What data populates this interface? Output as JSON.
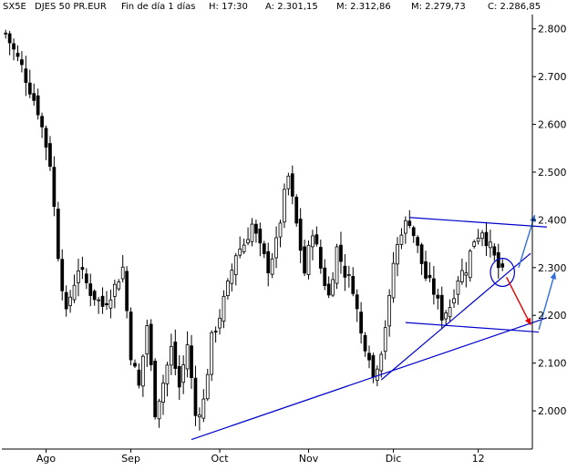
{
  "header": {
    "symbol": "SX5E",
    "name": "DJES 50 PR.EUR",
    "period": "Fin de día 1 días",
    "time": "H: 17:30",
    "open": "A: 2.301,15",
    "high": "M: 2.312,86",
    "low": "M: 2.279,73",
    "close": "C: 2.286,85"
  },
  "colors": {
    "background": "#ffffff",
    "candles": "#000000",
    "trendlines": "#0000cc",
    "arrow_up": "#2f6fdc",
    "arrow_down": "#e00000"
  },
  "chart_data": {
    "type": "candlestick",
    "ylim": [
      1920,
      2830
    ],
    "y_ticks": [
      2000,
      2100,
      2200,
      2300,
      2400,
      2500,
      2600,
      2700,
      2800
    ],
    "y_tick_labels": [
      "2.000",
      "2.100",
      "2.200",
      "2.300",
      "2.400",
      "2.500",
      "2.600",
      "2.700",
      "2.800"
    ],
    "y_axis_position": "right",
    "grid": false,
    "month_labels": [
      "Ago",
      "Sep",
      "Oct",
      "Nov",
      "Dic",
      "12"
    ],
    "month_starts": [
      10,
      31,
      53,
      75,
      96,
      117
    ],
    "n_sessions": 130,
    "close_path": [
      [
        0,
        2790
      ],
      [
        4,
        2720
      ],
      [
        8,
        2630
      ],
      [
        11,
        2520
      ],
      [
        13,
        2330
      ],
      [
        15,
        2200
      ],
      [
        16,
        2240
      ],
      [
        18,
        2300
      ],
      [
        21,
        2250
      ],
      [
        24,
        2220
      ],
      [
        27,
        2260
      ],
      [
        29,
        2300
      ],
      [
        31,
        2120
      ],
      [
        33,
        2050
      ],
      [
        35,
        2180
      ],
      [
        37,
        2000
      ],
      [
        39,
        2060
      ],
      [
        41,
        2130
      ],
      [
        43,
        2050
      ],
      [
        45,
        2140
      ],
      [
        47,
        1990
      ],
      [
        49,
        2020
      ],
      [
        51,
        2150
      ],
      [
        53,
        2200
      ],
      [
        55,
        2260
      ],
      [
        57,
        2330
      ],
      [
        59,
        2350
      ],
      [
        61,
        2390
      ],
      [
        63,
        2340
      ],
      [
        65,
        2300
      ],
      [
        67,
        2350
      ],
      [
        69,
        2450
      ],
      [
        70,
        2490
      ],
      [
        72,
        2390
      ],
      [
        74,
        2290
      ],
      [
        76,
        2380
      ],
      [
        78,
        2300
      ],
      [
        80,
        2240
      ],
      [
        82,
        2340
      ],
      [
        84,
        2290
      ],
      [
        86,
        2260
      ],
      [
        88,
        2160
      ],
      [
        90,
        2120
      ],
      [
        91,
        2070
      ],
      [
        93,
        2130
      ],
      [
        95,
        2230
      ],
      [
        96,
        2310
      ],
      [
        98,
        2380
      ],
      [
        100,
        2400
      ],
      [
        102,
        2340
      ],
      [
        104,
        2280
      ],
      [
        106,
        2250
      ],
      [
        108,
        2200
      ],
      [
        110,
        2220
      ],
      [
        112,
        2280
      ],
      [
        114,
        2300
      ],
      [
        116,
        2360
      ],
      [
        118,
        2380
      ],
      [
        120,
        2340
      ],
      [
        122,
        2300
      ],
      [
        123,
        2287
      ]
    ],
    "annotations": {
      "trendlines": [
        {
          "from": [
            46,
            1940
          ],
          "to": [
            134,
            2195
          ]
        },
        {
          "from": [
            93,
            2065
          ],
          "to": [
            130,
            2330
          ]
        },
        {
          "from": [
            100,
            2405
          ],
          "to": [
            134,
            2385
          ]
        },
        {
          "from": [
            99,
            2185
          ],
          "to": [
            132,
            2165
          ]
        }
      ],
      "circle": {
        "center": [
          123,
          2290
        ],
        "radius_value": 28
      },
      "arrows": [
        {
          "color": "up",
          "from": [
            127,
            2300
          ],
          "to": [
            131,
            2410
          ]
        },
        {
          "color": "down",
          "from": [
            124,
            2280
          ],
          "to": [
            130,
            2180
          ]
        },
        {
          "color": "up",
          "from": [
            132,
            2170
          ],
          "to": [
            136,
            2290
          ]
        }
      ]
    }
  }
}
